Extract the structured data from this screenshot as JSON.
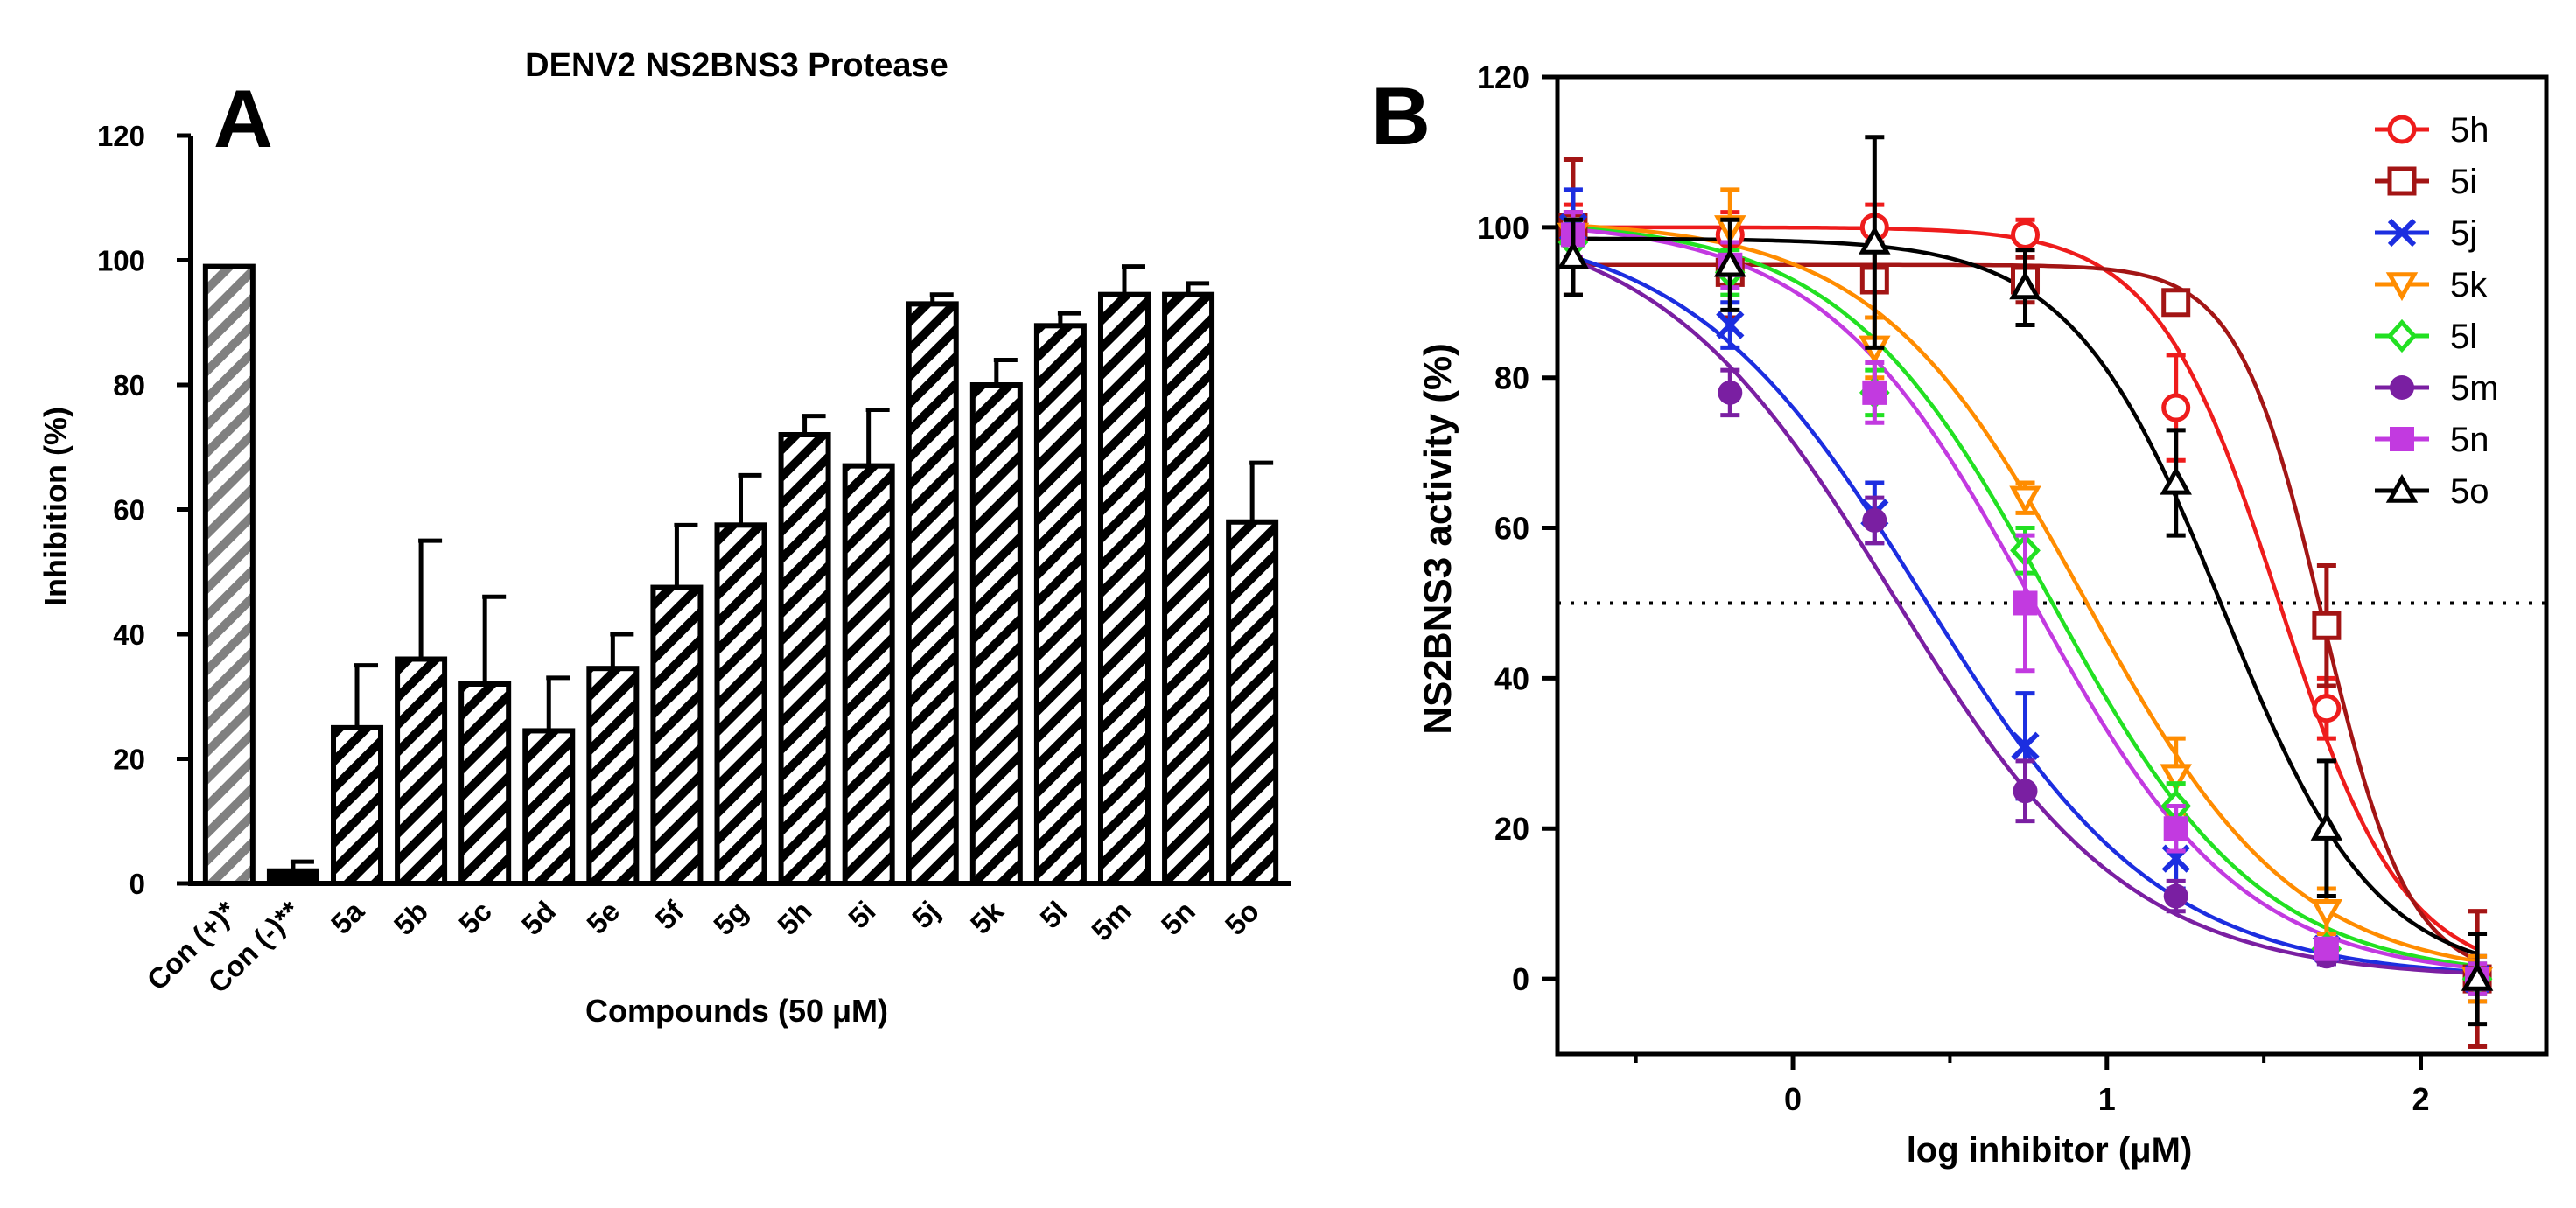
{
  "chart_data": [
    {
      "type": "bar",
      "panel_label": "A",
      "title": "DENV2 NS2BNS3 Protease",
      "xlabel": "Compounds (50 μM)",
      "ylabel": "Inhibition (%)",
      "ylim": [
        0,
        120
      ],
      "yticks": [
        "0",
        "20",
        "40",
        "60",
        "80",
        "100",
        "120"
      ],
      "grid": false,
      "categories": [
        "Con (+)*",
        "Con (-)**",
        "5a",
        "5b",
        "5c",
        "5d",
        "5e",
        "5f",
        "5g",
        "5h",
        "5i",
        "5j",
        "5k",
        "5l",
        "5m",
        "5n",
        "5o"
      ],
      "values": [
        99,
        2,
        25,
        36,
        32,
        24.5,
        34.5,
        47.5,
        57.5,
        72,
        67,
        93,
        80,
        89.5,
        94.5,
        94.5,
        58
      ],
      "errors": [
        0,
        1.5,
        10,
        19,
        14,
        8.5,
        5.5,
        10,
        8,
        3,
        9,
        1.5,
        4,
        2,
        4.5,
        1.8,
        9.5
      ],
      "styles": [
        "gray",
        "dark",
        "hatch",
        "hatch",
        "hatch",
        "hatch",
        "hatch",
        "hatch",
        "hatch",
        "hatch",
        "hatch",
        "hatch",
        "hatch",
        "hatch",
        "hatch",
        "hatch",
        "hatch"
      ],
      "colors": {
        "gray_hatch": "#808080",
        "hatch": "#000000"
      }
    },
    {
      "type": "line",
      "panel_label": "B",
      "xlabel": "log inhibitor (μM)",
      "ylabel": "NS2BNS3 activity (%)",
      "xlim": [
        -0.75,
        2.4
      ],
      "ylim": [
        -10,
        120
      ],
      "xticks": [
        "0",
        "1",
        "2"
      ],
      "yticks": [
        "0",
        "20",
        "40",
        "60",
        "80",
        "100",
        "120"
      ],
      "reference_line": {
        "y": 50,
        "style": "dotted"
      },
      "legend_position": "top-right",
      "x": [
        -0.7,
        -0.2,
        0.26,
        0.74,
        1.22,
        1.7,
        2.18
      ],
      "series": [
        {
          "name": "5h",
          "color": "#ee1c1c",
          "marker": "circle-open",
          "curve": {
            "top": 100,
            "bottom": 0,
            "logIC50": 1.55,
            "hill": 2.2
          },
          "values": [
            99,
            99,
            100,
            99,
            76,
            36,
            0
          ],
          "errors": [
            4,
            3,
            3,
            2,
            7,
            4,
            9
          ]
        },
        {
          "name": "5i",
          "color": "#a31515",
          "marker": "square-open",
          "curve": {
            "top": 95,
            "bottom": 0,
            "logIC50": 1.69,
            "hill": 3.2
          },
          "values": [
            100,
            94,
            93,
            93,
            90,
            47,
            0
          ],
          "errors": [
            9,
            6,
            5,
            3,
            1,
            8,
            9
          ]
        },
        {
          "name": "5j",
          "color": "#1c2ee0",
          "marker": "x",
          "curve": {
            "top": 101,
            "bottom": 0,
            "logIC50": 0.42,
            "hill": 1.15
          },
          "values": [
            100,
            87,
            62,
            31,
            16,
            4,
            0
          ],
          "errors": [
            5,
            3,
            4,
            7,
            4,
            2,
            3
          ]
        },
        {
          "name": "5k",
          "color": "#ff8c00",
          "marker": "triangle-down-open",
          "curve": {
            "top": 101,
            "bottom": 0,
            "logIC50": 0.93,
            "hill": 1.3
          },
          "values": [
            99,
            100,
            84,
            64,
            27,
            9,
            0
          ],
          "errors": [
            3,
            5,
            4,
            2,
            5,
            3,
            3
          ]
        },
        {
          "name": "5l",
          "color": "#22e022",
          "marker": "diamond-open",
          "curve": {
            "top": 101,
            "bottom": 0,
            "logIC50": 0.82,
            "hill": 1.3
          },
          "values": [
            98,
            94,
            78,
            57,
            23,
            4,
            0
          ],
          "errors": [
            3,
            3,
            3,
            3,
            3,
            1,
            2
          ]
        },
        {
          "name": "5m",
          "color": "#7a1fa2",
          "marker": "circle",
          "curve": {
            "top": 102,
            "bottom": 0,
            "logIC50": 0.32,
            "hill": 1.15
          },
          "values": [
            99,
            78,
            61,
            25,
            11,
            3,
            0
          ],
          "errors": [
            3,
            3,
            3,
            4,
            2,
            1,
            2
          ]
        },
        {
          "name": "5n",
          "color": "#c23ae0",
          "marker": "square",
          "curve": {
            "top": 101,
            "bottom": 0,
            "logIC50": 0.76,
            "hill": 1.3
          },
          "values": [
            99,
            95,
            78,
            50,
            20,
            4,
            0
          ],
          "errors": [
            3,
            3,
            4,
            9,
            3,
            1,
            2
          ]
        },
        {
          "name": "5o",
          "color": "#000000",
          "marker": "triangle-open",
          "curve": {
            "top": 98.5,
            "bottom": 0,
            "logIC50": 1.37,
            "hill": 1.8
          },
          "values": [
            96,
            95,
            98,
            92,
            66,
            20,
            0
          ],
          "errors": [
            5,
            6,
            14,
            5,
            7,
            9,
            6
          ]
        }
      ]
    }
  ]
}
